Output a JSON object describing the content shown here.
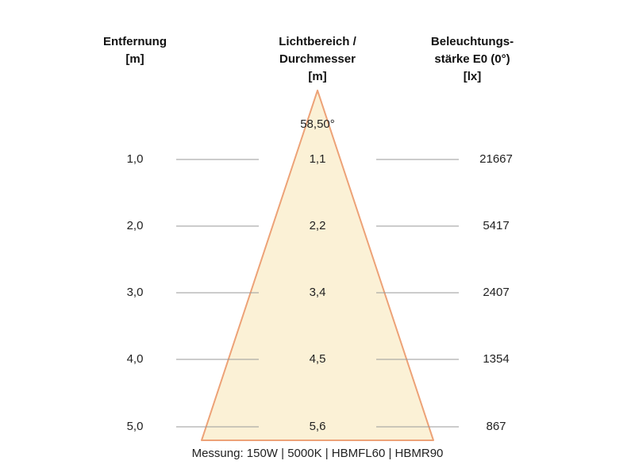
{
  "headers": {
    "distance": {
      "line1": "Entfernung",
      "line2": "",
      "unit": "[m]"
    },
    "diameter": {
      "line1": "Lichtbereich /",
      "line2": "Durchmesser",
      "unit": "[m]"
    },
    "illuminance": {
      "line1": "Beleuchtungs-",
      "line2": "stärke E0 (0°)",
      "unit": "[lx]"
    }
  },
  "beam_angle": "58,50°",
  "rows": [
    {
      "distance": "1,0",
      "diameter": "1,1",
      "illuminance": "21667"
    },
    {
      "distance": "2,0",
      "diameter": "2,2",
      "illuminance": "5417"
    },
    {
      "distance": "3,0",
      "diameter": "3,4",
      "illuminance": "2407"
    },
    {
      "distance": "4,0",
      "diameter": "4,5",
      "illuminance": "1354"
    },
    {
      "distance": "5,0",
      "diameter": "5,6",
      "illuminance": "867"
    }
  ],
  "footer": "Messung: 150W | 5000K | HBMFL60 | HBMR90",
  "colors": {
    "cone_fill": "#fbf1d6",
    "cone_edge": "#eda277",
    "guide_line": "#9a9a9a"
  }
}
